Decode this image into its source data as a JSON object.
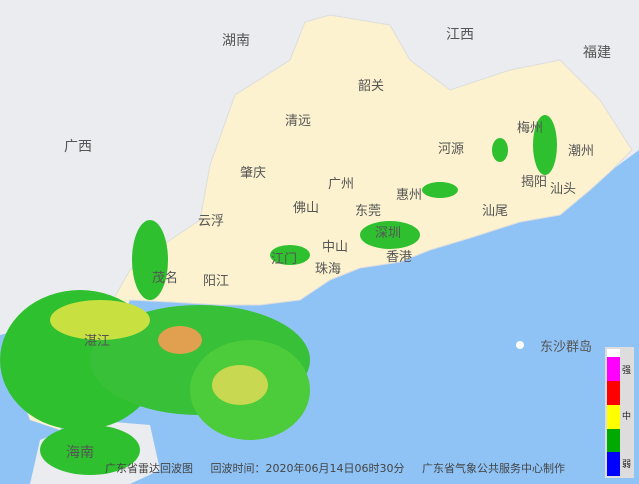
{
  "map": {
    "provinces": [
      "湖南",
      "江西",
      "福建",
      "广西",
      "海南"
    ],
    "cities": [
      "韶关",
      "清远",
      "肇庆",
      "广州",
      "河源",
      "梅州",
      "潮州",
      "揭阳",
      "汕头",
      "汕尾",
      "惠州",
      "东莞",
      "深圳",
      "佛山",
      "云浮",
      "江门",
      "中山",
      "珠海",
      "香港",
      "阳江",
      "茂名",
      "湛江"
    ],
    "islands": [
      "东沙群岛"
    ],
    "colors": {
      "sea": "#8fc3f6",
      "guangdong": "#fcf2cf",
      "neighbors": "#eaecef",
      "weak": "#0000ff",
      "light": "#00aa00",
      "medium": "#ffff00",
      "heavy": "#ff0000",
      "strong": "#ff00ff"
    }
  },
  "caption": {
    "title": "广东省雷达回波图",
    "time": "回波时间：2020年06月14日06时30分",
    "producer": "广东省气象公共服务中心制作"
  },
  "legend": {
    "strong": "强",
    "medium": "中",
    "weak": "弱"
  }
}
